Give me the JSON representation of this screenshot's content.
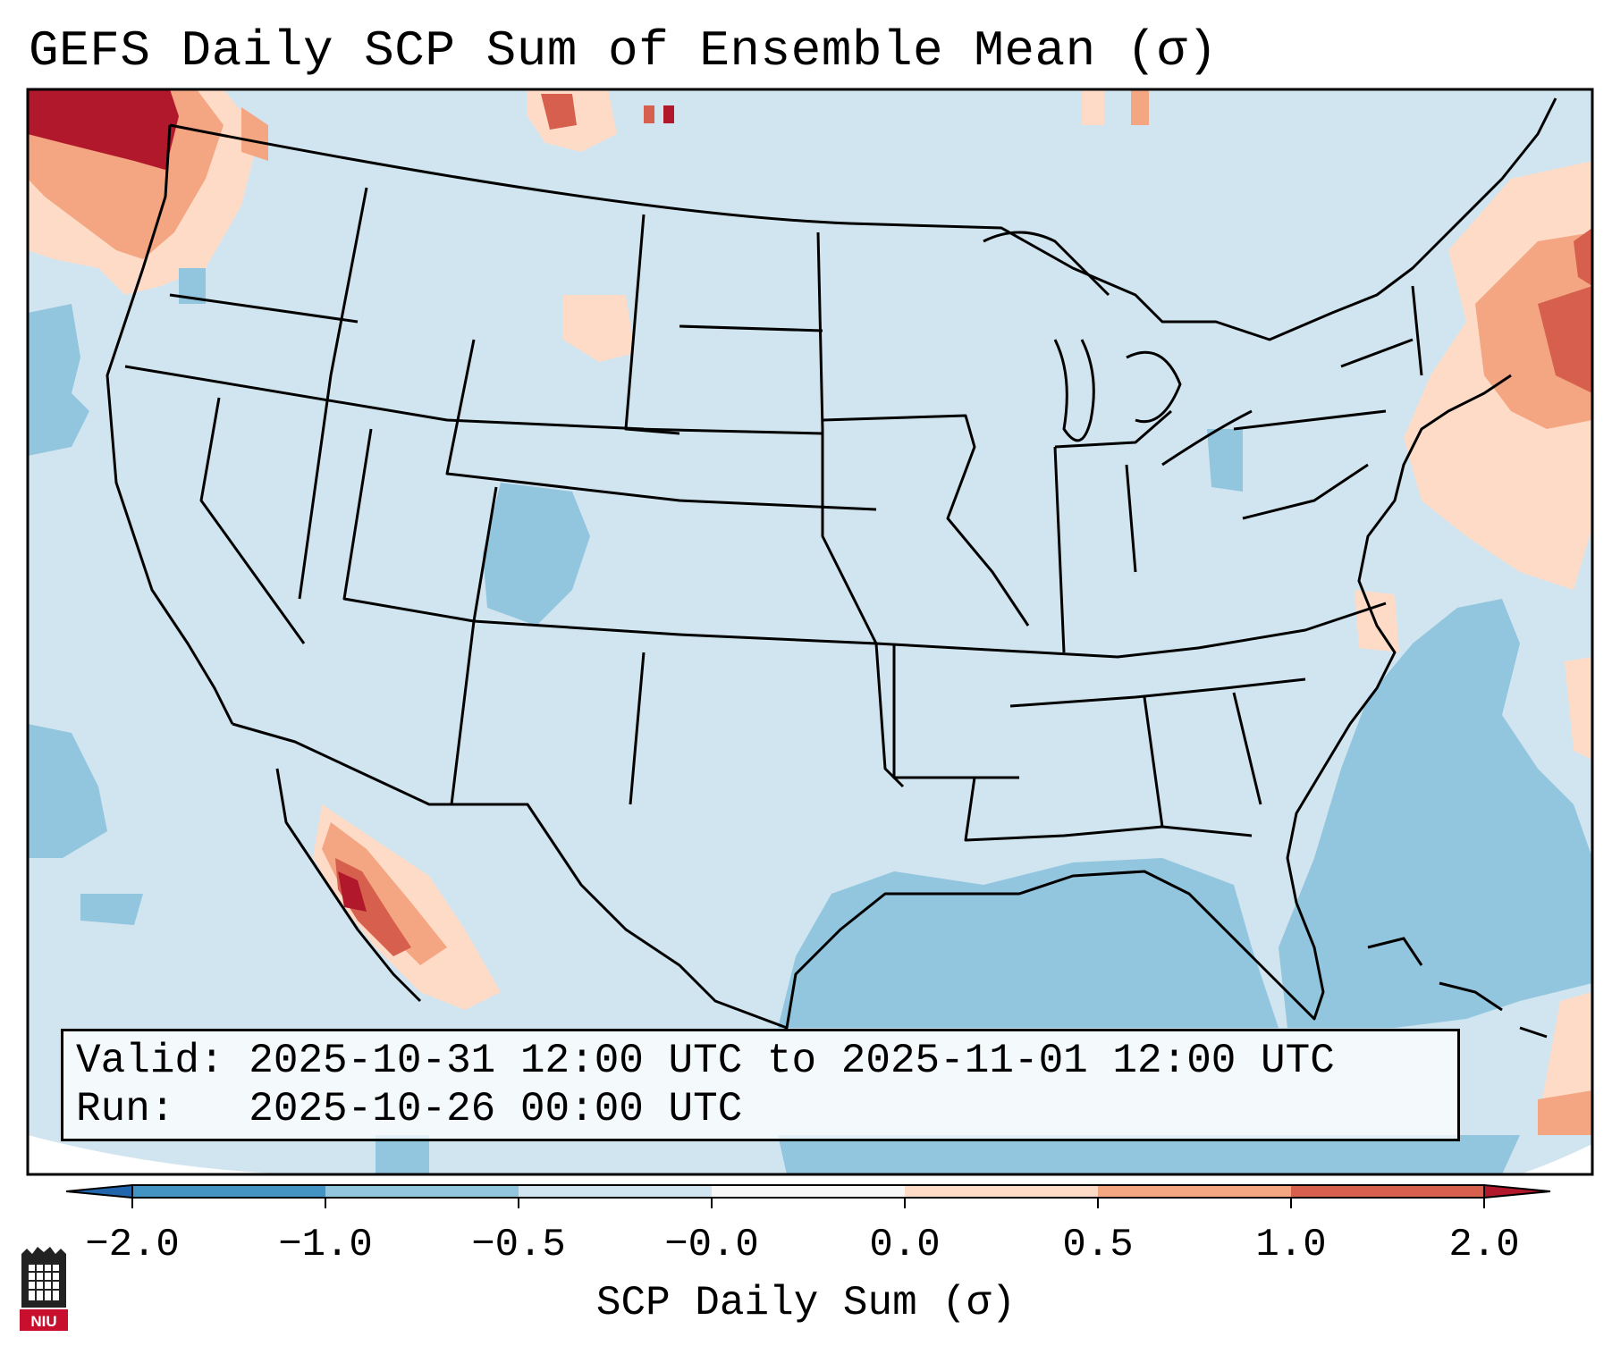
{
  "title": "GEFS Daily SCP Sum of Ensemble Mean (σ)",
  "valid_line": "Valid: 2025-10-31 12:00 UTC to 2025-11-01 12:00 UTC",
  "run_line": "Run:   2025-10-26 00:00 UTC",
  "colorbar": {
    "label": "SCP Daily Sum (σ)",
    "ticks": [
      "−2.0",
      "−1.0",
      "−0.5",
      "−0.0",
      "0.0",
      "0.5",
      "1.0",
      "2.0"
    ],
    "colors": [
      "#4393c3",
      "#92c5de",
      "#d1e5f0",
      "#f7f7f7",
      "#fddbc7",
      "#f4a582",
      "#d6604d",
      "#b2182b"
    ],
    "extend_low_color": "#2166ac",
    "extend_high_color": "#b2182b"
  },
  "logo": {
    "text": "NIU",
    "color": "#c8102e"
  },
  "map": {
    "background_color": "#d1e5f0",
    "outline_color": "#000000"
  }
}
